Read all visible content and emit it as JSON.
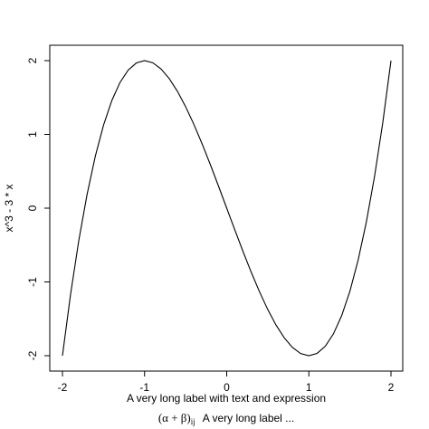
{
  "chart_data": {
    "type": "line",
    "xlabel": "A very long label with text and expression",
    "ylabel": "x^3 - 3 * x",
    "subtitle_expr": {
      "open": "(",
      "inner": "α + β",
      "close": ")",
      "subscript": "ij",
      "text": "A very long label ..."
    },
    "xlim": [
      -2,
      2
    ],
    "ylim": [
      -2,
      2
    ],
    "xticks": [
      -2,
      -1,
      0,
      1,
      2
    ],
    "yticks": [
      -2,
      -1,
      0,
      1,
      2
    ],
    "xtick_labels": [
      "-2",
      "-1",
      "0",
      "1",
      "2"
    ],
    "ytick_labels": [
      "-2",
      "-1",
      "0",
      "1",
      "2"
    ],
    "function": "x^3 - 3 * x",
    "series": [
      {
        "x": [
          -2.0,
          -1.9,
          -1.8,
          -1.7,
          -1.6,
          -1.5,
          -1.4,
          -1.3,
          -1.2,
          -1.1,
          -1.0,
          -0.9,
          -0.8,
          -0.7,
          -0.6,
          -0.5,
          -0.4,
          -0.3,
          -0.2,
          -0.1,
          0.0,
          0.1,
          0.2,
          0.3,
          0.4,
          0.5,
          0.6,
          0.7,
          0.8,
          0.9,
          1.0,
          1.1,
          1.2,
          1.3,
          1.4,
          1.5,
          1.6,
          1.7,
          1.8,
          1.9,
          2.0
        ],
        "y": [
          -2.0,
          -1.159,
          -0.432,
          0.187,
          0.704,
          1.125,
          1.456,
          1.703,
          1.872,
          1.969,
          2.0,
          1.971,
          1.888,
          1.757,
          1.584,
          1.375,
          1.136,
          0.873,
          0.592,
          0.299,
          0.0,
          -0.299,
          -0.592,
          -0.873,
          -1.136,
          -1.375,
          -1.584,
          -1.757,
          -1.888,
          -1.971,
          -2.0,
          -1.969,
          -1.872,
          -1.703,
          -1.456,
          -1.125,
          -0.704,
          -0.187,
          0.432,
          1.159,
          2.0
        ]
      }
    ]
  }
}
